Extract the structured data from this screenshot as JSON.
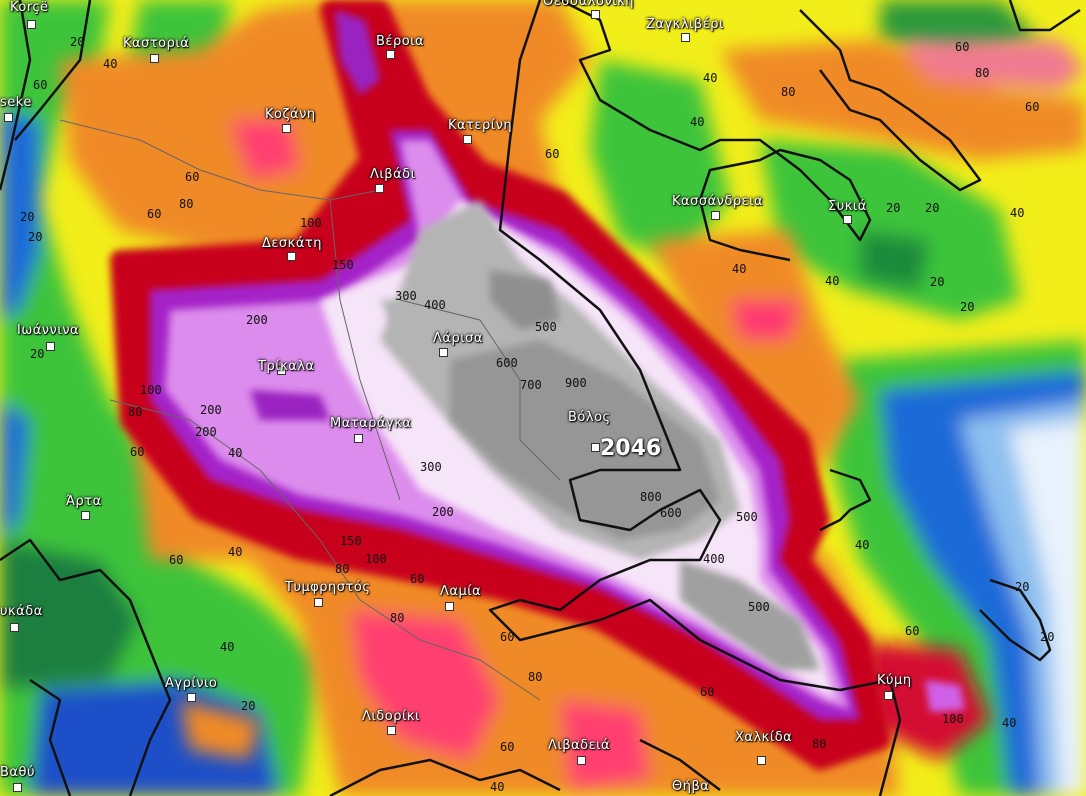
{
  "map": {
    "peak_value": "2046",
    "cities": [
      "Korçë",
      "Καστοριά",
      "Βέροια",
      "Κοζάνη",
      "Κατερίνη",
      "Λιβάδι",
      "Δεσκάτη",
      "Θεσσαλονίκη",
      "Ζαγκλιβέρι",
      "Κασσάνδρεια",
      "Συκιά",
      "Ιωάννινα",
      "Τρίκαλα",
      "Λάρισα",
      "Ματαράγκα",
      "Βόλος",
      "Άρτα",
      "υκάδα",
      "Τυμφρηστός",
      "Λαμία",
      "Αγρίνιο",
      "Λιδορίκι",
      "Λιβαδειά",
      "Χαλκίδα",
      "Κύμη",
      "Θήβα",
      "Βαθύ",
      "seke"
    ],
    "contour_labels": [
      "20",
      "40",
      "60",
      "80",
      "100",
      "150",
      "200",
      "300",
      "400",
      "500",
      "600",
      "700",
      "900",
      "800",
      "600",
      "400",
      "500",
      "500",
      "40",
      "60",
      "80",
      "20",
      "40",
      "60",
      "80",
      "60",
      "40",
      "20",
      "40",
      "20",
      "40",
      "20",
      "20",
      "60",
      "60",
      "40",
      "80",
      "100",
      "200",
      "200",
      "300",
      "200",
      "150",
      "100",
      "80",
      "60",
      "40",
      "60",
      "80",
      "60",
      "40",
      "60",
      "80",
      "60",
      "40",
      "100",
      "80",
      "60",
      "40",
      "20",
      "40",
      "20",
      "60",
      "20",
      "20",
      "20"
    ],
    "colors": {
      "gray_core": "#a9a9a9",
      "lavender": "#f3dcf5",
      "purple": "#c040e0",
      "dark_red": "#c00020",
      "orange": "#f08020",
      "yellow": "#f2ee1a",
      "green": "#30c030",
      "blue": "#1060d0"
    }
  }
}
